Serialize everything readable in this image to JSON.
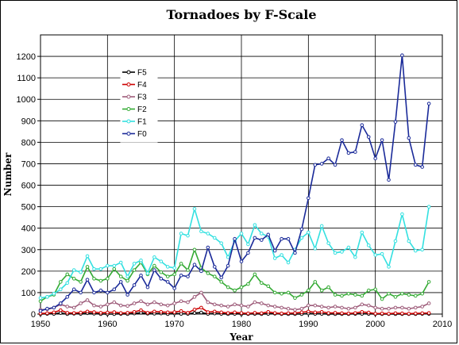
{
  "chart_data": {
    "type": "line",
    "title": "Tornadoes by F-Scale",
    "xlabel": "Year",
    "ylabel": "Number",
    "xlim": [
      1950,
      2010
    ],
    "ylim": [
      0,
      1300
    ],
    "xticks": [
      1950,
      1960,
      1970,
      1980,
      1990,
      2000,
      2010
    ],
    "yticks": [
      0,
      100,
      200,
      300,
      400,
      500,
      600,
      700,
      800,
      900,
      1000,
      1100,
      1200
    ],
    "grid": true,
    "legend_position": "upper-left",
    "x": [
      1950,
      1951,
      1952,
      1953,
      1954,
      1955,
      1956,
      1957,
      1958,
      1959,
      1960,
      1961,
      1962,
      1963,
      1964,
      1965,
      1966,
      1967,
      1968,
      1969,
      1970,
      1971,
      1972,
      1973,
      1974,
      1975,
      1976,
      1977,
      1978,
      1979,
      1980,
      1981,
      1982,
      1983,
      1984,
      1985,
      1986,
      1987,
      1988,
      1989,
      1990,
      1991,
      1992,
      1993,
      1994,
      1995,
      1996,
      1997,
      1998,
      1999,
      2000,
      2001,
      2002,
      2003,
      2004,
      2005,
      2006,
      2007,
      2008
    ],
    "series": [
      {
        "name": "F5",
        "color": "#000000",
        "marker": "circle",
        "values": [
          0,
          1,
          1,
          5,
          0,
          2,
          1,
          4,
          2,
          0,
          0,
          0,
          1,
          0,
          3,
          6,
          2,
          2,
          3,
          0,
          3,
          1,
          1,
          5,
          7,
          1,
          3,
          1,
          0,
          1,
          0,
          0,
          1,
          0,
          1,
          2,
          0,
          0,
          0,
          0,
          3,
          1,
          1,
          0,
          0,
          0,
          0,
          1,
          1,
          1,
          0,
          0,
          0,
          0,
          0,
          0,
          0,
          1,
          1
        ]
      },
      {
        "name": "F4",
        "color": "#cc0000",
        "marker": "circle",
        "values": [
          3,
          4,
          8,
          18,
          6,
          5,
          7,
          12,
          9,
          6,
          7,
          9,
          5,
          6,
          10,
          18,
          6,
          12,
          10,
          8,
          9,
          14,
          6,
          21,
          30,
          9,
          12,
          8,
          5,
          8,
          5,
          3,
          6,
          4,
          10,
          5,
          3,
          4,
          5,
          8,
          12,
          8,
          10,
          5,
          6,
          4,
          3,
          5,
          10,
          7,
          2,
          3,
          2,
          4,
          3,
          2,
          3,
          4,
          5
        ]
      },
      {
        "name": "F3",
        "color": "#9e5c7a",
        "marker": "circle",
        "values": [
          20,
          22,
          30,
          45,
          35,
          30,
          50,
          65,
          40,
          35,
          45,
          55,
          40,
          38,
          50,
          60,
          45,
          55,
          45,
          40,
          50,
          60,
          55,
          80,
          100,
          55,
          45,
          40,
          35,
          45,
          40,
          35,
          55,
          50,
          40,
          35,
          30,
          25,
          20,
          25,
          40,
          40,
          35,
          30,
          35,
          30,
          25,
          30,
          45,
          40,
          30,
          25,
          25,
          30,
          30,
          25,
          30,
          35,
          50
        ]
      },
      {
        "name": "F2",
        "color": "#33aa33",
        "marker": "circle",
        "values": [
          60,
          80,
          90,
          150,
          185,
          165,
          150,
          220,
          165,
          155,
          165,
          210,
          175,
          155,
          205,
          240,
          185,
          225,
          195,
          175,
          185,
          235,
          205,
          300,
          215,
          190,
          175,
          150,
          125,
          110,
          125,
          140,
          185,
          145,
          130,
          100,
          95,
          100,
          75,
          90,
          110,
          150,
          110,
          125,
          90,
          85,
          95,
          90,
          85,
          110,
          115,
          70,
          95,
          80,
          95,
          90,
          85,
          95,
          150
        ]
      },
      {
        "name": "F1",
        "color": "#33e0e0",
        "marker": "circle",
        "values": [
          75,
          80,
          95,
          115,
          145,
          205,
          195,
          270,
          210,
          210,
          225,
          225,
          240,
          175,
          235,
          250,
          190,
          265,
          245,
          220,
          215,
          375,
          365,
          490,
          385,
          375,
          355,
          330,
          265,
          340,
          375,
          325,
          415,
          375,
          360,
          260,
          275,
          240,
          300,
          355,
          380,
          305,
          410,
          330,
          285,
          290,
          310,
          265,
          380,
          320,
          275,
          280,
          220,
          340,
          465,
          340,
          295,
          300,
          500
        ]
      },
      {
        "name": "F0",
        "color": "#1a2a99",
        "marker": "circle",
        "values": [
          15,
          25,
          30,
          50,
          80,
          115,
          100,
          160,
          100,
          110,
          100,
          115,
          150,
          90,
          135,
          180,
          125,
          205,
          165,
          150,
          120,
          180,
          175,
          230,
          200,
          310,
          220,
          170,
          225,
          350,
          245,
          285,
          355,
          345,
          370,
          295,
          350,
          350,
          285,
          395,
          540,
          695,
          700,
          725,
          695,
          810,
          750,
          755,
          880,
          825,
          725,
          810,
          625,
          895,
          1205,
          820,
          695,
          685,
          980
        ]
      }
    ]
  }
}
